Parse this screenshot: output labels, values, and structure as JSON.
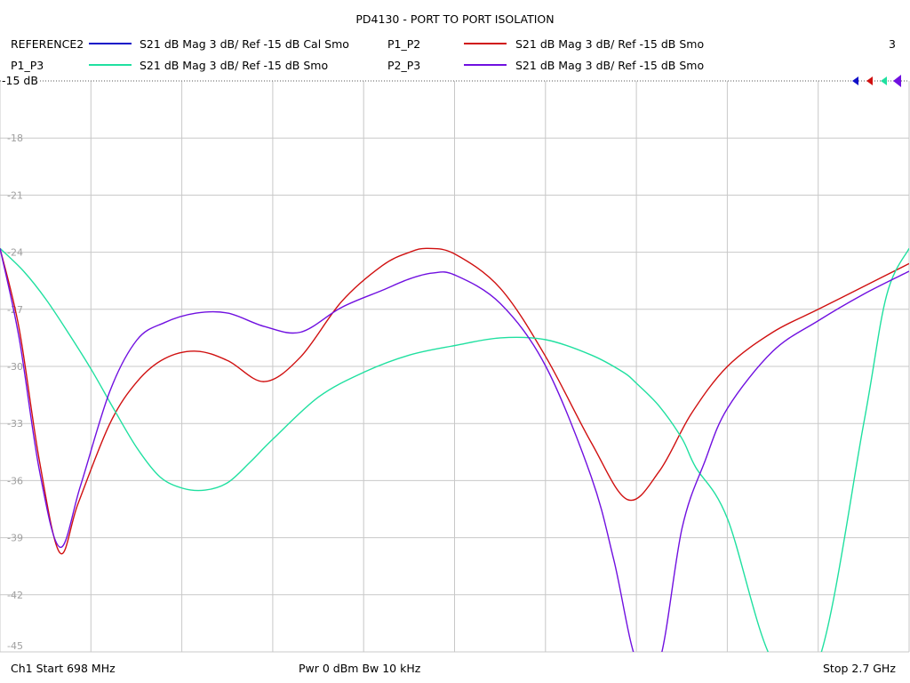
{
  "header": {
    "title": "PD4130 - PORT TO PORT ISOLATION",
    "legend_rows": [
      [
        {
          "label": "REFERENCE2",
          "desc": "S21  dB Mag  3 dB/ Ref -15 dB  Cal Smo",
          "color": "#1010c8"
        },
        {
          "label": "P1_P2",
          "desc": "S21  dB Mag  3 dB/ Ref -15 dB  Smo",
          "color": "#d01010"
        }
      ],
      [
        {
          "label": "P1_P3",
          "desc": "S21  dB Mag  3 dB/ Ref -15 dB  Smo",
          "color": "#20e0a0"
        },
        {
          "label": "P2_P3",
          "desc": "S21  dB Mag  3 dB/ Ref -15 dB  Smo",
          "color": "#7010e0"
        }
      ]
    ],
    "marker_count": "3",
    "ref_label": "-15 dB"
  },
  "footer": {
    "start": "Ch1  Start  698 MHz",
    "power": "Pwr  0 dBm  Bw  10 kHz",
    "stop": "Stop  2.7 GHz"
  },
  "chart_data": {
    "type": "line",
    "title": "PD4130 - PORT TO PORT ISOLATION",
    "xlabel": "",
    "ylabel": "",
    "xlim": [
      698,
      2700
    ],
    "ylim": [
      -45,
      -15
    ],
    "x_unit": "MHz",
    "y_ticks": [
      "-15",
      "-18",
      "-21",
      "-24",
      "-27",
      "-30",
      "-33",
      "-36",
      "-39",
      "-42",
      "-45"
    ],
    "grid": true,
    "reference_marker_colors": [
      "#1010c8",
      "#d01010",
      "#20e0a0",
      "#7010e0"
    ],
    "series": [
      {
        "name": "P1_P2",
        "color": "#d01010",
        "x": [
          698,
          740,
          785,
          830,
          870,
          940,
          1000,
          1060,
          1130,
          1200,
          1280,
          1360,
          1450,
          1540,
          1600,
          1640,
          1700,
          1800,
          1900,
          2000,
          2080,
          2150,
          2220,
          2300,
          2400,
          2500,
          2600,
          2700
        ],
        "y": [
          -23.8,
          -28,
          -35,
          -39.8,
          -37.2,
          -33,
          -30.8,
          -29.6,
          -29.2,
          -29.7,
          -30.8,
          -29.5,
          -26.6,
          -24.7,
          -24,
          -23.8,
          -24.1,
          -25.9,
          -29.5,
          -34,
          -37,
          -35.5,
          -32.5,
          -30,
          -28.2,
          -27,
          -25.8,
          -24.6
        ]
      },
      {
        "name": "P1_P3",
        "color": "#20e0a0",
        "x": [
          698,
          750,
          800,
          850,
          900,
          950,
          1000,
          1050,
          1100,
          1150,
          1200,
          1250,
          1300,
          1400,
          1500,
          1600,
          1700,
          1800,
          1900,
          2000,
          2070,
          2100,
          2150,
          2200,
          2230,
          2300,
          2400,
          2500,
          2600,
          2650,
          2700
        ],
        "y": [
          -23.8,
          -25,
          -26.5,
          -28.3,
          -30.2,
          -32.3,
          -34.3,
          -35.8,
          -36.4,
          -36.5,
          -36.1,
          -35,
          -33.8,
          -31.6,
          -30.3,
          -29.4,
          -28.9,
          -28.5,
          -28.6,
          -29.4,
          -30.3,
          -30.9,
          -32.1,
          -33.8,
          -35.3,
          -38,
          -45.5,
          -45.5,
          -33,
          -26.3,
          -23.8
        ]
      },
      {
        "name": "P2_P3",
        "color": "#7010e0",
        "x": [
          698,
          740,
          785,
          830,
          875,
          940,
          1000,
          1060,
          1130,
          1200,
          1280,
          1360,
          1450,
          1540,
          1600,
          1650,
          1700,
          1800,
          1900,
          2000,
          2050,
          2100,
          2150,
          2200,
          2250,
          2300,
          2400,
          2500,
          2600,
          2700
        ],
        "y": [
          -23.8,
          -28.5,
          -35.5,
          -39.5,
          -36.3,
          -31.3,
          -28.6,
          -27.7,
          -27.2,
          -27.2,
          -27.9,
          -28.2,
          -26.9,
          -26,
          -25.4,
          -25.1,
          -25.2,
          -26.7,
          -30,
          -35.8,
          -40.2,
          -45.5,
          -45.5,
          -38.5,
          -35,
          -32.2,
          -29.2,
          -27.6,
          -26.2,
          -25
        ]
      }
    ]
  }
}
